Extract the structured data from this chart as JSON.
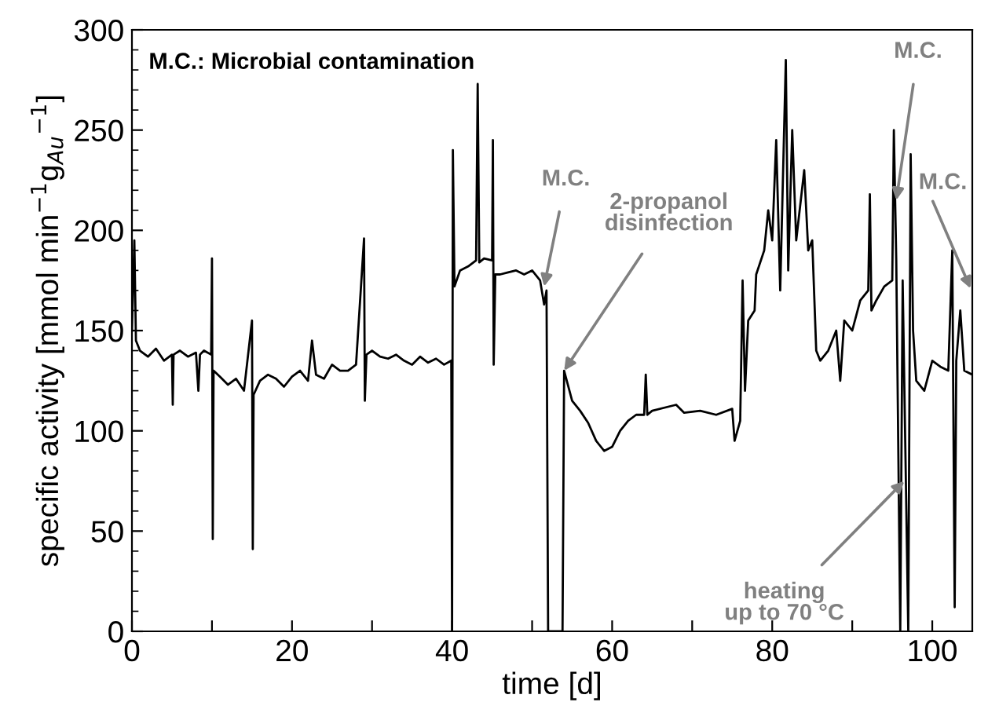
{
  "chart_data": {
    "type": "line",
    "xlabel": "time [d]",
    "ylabel": "specific activity [mmol min$^{−1}$g$_{Au}$$^{−1}$]",
    "xlim": [
      0,
      105
    ],
    "ylim": [
      0,
      300
    ],
    "xticks": [
      0,
      {
        "value": 10,
        "label": null
      },
      20,
      {
        "value": 30,
        "label": null
      },
      40,
      {
        "value": 50,
        "label": null
      },
      60,
      {
        "value": 70,
        "label": null
      },
      80,
      {
        "value": 90,
        "label": null
      },
      100
    ],
    "yticks": [
      0,
      50,
      100,
      150,
      200,
      250,
      300
    ],
    "grid": false,
    "legend": false,
    "marker": "none",
    "line_style": "solid",
    "annotations": [
      "M.C.: Microbial contamination",
      {
        "text": "M.C.",
        "x": 51.5,
        "y": 172
      },
      {
        "text": "2-propanol\ndisinfection",
        "x": 54,
        "y": 130
      },
      {
        "text": "M.C.",
        "x": 95.5,
        "y": 215
      },
      "M.C.",
      {
        "text": "heating\nup to 70 °C",
        "x": 96.5,
        "y": 75
      }
    ],
    "series": [
      {
        "color": "#000000",
        "x": [
          0,
          0.3,
          0.5,
          1,
          2,
          3,
          4,
          5,
          5.1,
          5.2,
          6,
          7,
          8,
          8.3,
          8.5,
          9,
          9.9,
          10,
          10.1,
          10.2,
          11,
          12,
          13,
          14,
          15,
          15.1,
          15.2,
          16,
          17,
          18,
          19,
          20,
          21,
          22,
          22.5,
          23,
          24,
          25,
          26,
          27,
          28,
          29,
          29.1,
          29.3,
          30,
          31,
          32,
          33,
          34,
          35,
          36,
          37,
          38,
          39,
          39.9,
          40,
          40.1,
          40.3,
          41,
          42,
          43,
          43.2,
          43.4,
          44,
          45,
          45.1,
          45.2,
          45.4,
          46,
          47,
          48,
          49,
          50,
          51,
          51.5,
          51.8,
          52,
          53,
          53.8,
          54,
          55,
          56,
          57,
          58,
          59,
          60,
          61,
          62,
          63,
          64,
          64.2,
          64.4,
          65,
          67,
          68,
          69,
          71,
          73,
          75,
          75.3,
          76,
          76.3,
          76.6,
          77,
          77.8,
          78,
          79,
          79.5,
          80,
          80.5,
          81,
          81.7,
          82,
          82.5,
          83,
          84,
          84.5,
          85,
          85.5,
          86,
          87,
          88,
          88.5,
          89,
          90,
          91,
          92,
          92.2,
          92.4,
          93,
          94,
          95,
          95.2,
          95.5,
          96,
          96.3,
          97,
          97.3,
          97.6,
          98,
          99,
          100,
          101,
          102,
          102.5,
          102.8,
          103,
          103.5,
          104,
          105
        ],
        "values": [
          150,
          195,
          145,
          140,
          137,
          141,
          135,
          138,
          113,
          138,
          140,
          137,
          139,
          120,
          138,
          140,
          138,
          186,
          46,
          130,
          127,
          123,
          126,
          120,
          155,
          41,
          118,
          125,
          128,
          126,
          122,
          127,
          130,
          125,
          145,
          128,
          126,
          133,
          130,
          130,
          133,
          196,
          115,
          138,
          140,
          137,
          136,
          138,
          135,
          133,
          137,
          134,
          136,
          133,
          135,
          0,
          240,
          172,
          180,
          182,
          185,
          273,
          184,
          186,
          185,
          245,
          133,
          178,
          178,
          179,
          180,
          178,
          180,
          175,
          163,
          170,
          0,
          0,
          0,
          130,
          115,
          110,
          104,
          95,
          90,
          92,
          100,
          105,
          108,
          108,
          128,
          108,
          110,
          112,
          113,
          109,
          110,
          108,
          111,
          95,
          105,
          175,
          120,
          155,
          160,
          178,
          190,
          210,
          195,
          245,
          170,
          285,
          180,
          250,
          195,
          230,
          190,
          195,
          140,
          135,
          140,
          150,
          125,
          155,
          150,
          165,
          170,
          218,
          160,
          165,
          172,
          175,
          250,
          185,
          0,
          175,
          0,
          238,
          150,
          125,
          120,
          135,
          132,
          130,
          190,
          12,
          135,
          160,
          130,
          128
        ]
      }
    ]
  }
}
